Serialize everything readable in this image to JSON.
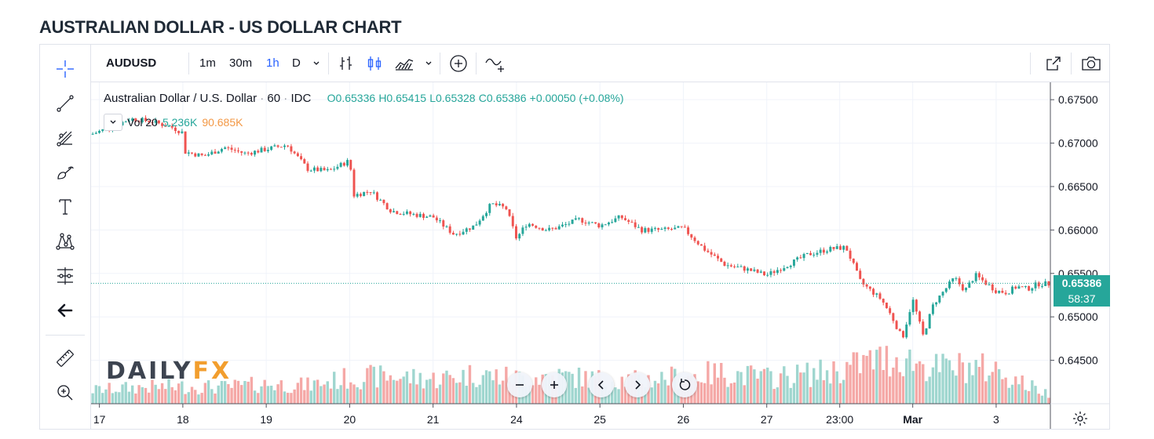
{
  "page_title": "AUSTRALIAN DOLLAR - US DOLLAR CHART",
  "toolbar": {
    "symbol": "AUDUSD",
    "intervals": [
      "1m",
      "30m",
      "1h",
      "D"
    ],
    "active_interval": "1h",
    "icons": [
      "bar-style-icon",
      "candle-style-icon",
      "area-style-icon",
      "chevron-down-icon",
      "add-compare-icon",
      "indicators-icon",
      "fullscreen-popout-icon",
      "snapshot-camera-icon"
    ]
  },
  "left_tools": [
    "crosshair-icon",
    "trend-line-icon",
    "fib-tools-icon",
    "brush-icon",
    "text-icon",
    "pattern-icon",
    "prediction-icon",
    "back-arrow-icon",
    "ruler-icon",
    "zoom-in-icon"
  ],
  "legend": {
    "name": "Australian Dollar / U.S. Dollar",
    "interval": "60",
    "source": "IDC",
    "open": "O0.65336",
    "high": "H0.65415",
    "low": "L0.65328",
    "close": "C0.65386",
    "change": "+0.00050 (+0.08%)"
  },
  "volume_legend": {
    "label": "Vol 20",
    "value1": "5.236K",
    "value2": "90.685K"
  },
  "logo": {
    "part1": "DAILY",
    "part2": "FX"
  },
  "price_badge": {
    "price": "0.65386",
    "countdown": "58:37",
    "color": "#26a69a"
  },
  "colors": {
    "up": "#26a69a",
    "down": "#ef5350",
    "vol_up": "#9fd6cf",
    "vol_down": "#f5a8a6"
  },
  "nav_buttons": [
    "zoom-out",
    "zoom-in",
    "scroll-left",
    "scroll-right",
    "reset"
  ],
  "chart_data": {
    "type": "candlestick",
    "title": "Australian Dollar / U.S. Dollar",
    "interval": "60",
    "ylim": [
      0.64,
      0.677
    ],
    "y_ticks": [
      "0.67500",
      "0.67000",
      "0.66500",
      "0.66000",
      "0.65500",
      "0.65000",
      "0.64500"
    ],
    "x_ticks": [
      {
        "label": "17",
        "pos": 0.0
      },
      {
        "label": "18",
        "pos": 4.0
      },
      {
        "label": "19",
        "pos": 8.0
      },
      {
        "label": "20",
        "pos": 12.0
      },
      {
        "label": "21",
        "pos": 16.0
      },
      {
        "label": "24",
        "pos": 20.0
      },
      {
        "label": "25",
        "pos": 24.0
      },
      {
        "label": "26",
        "pos": 28.0
      },
      {
        "label": "27",
        "pos": 32.0
      },
      {
        "label": "23:00",
        "pos": 35.5
      },
      {
        "label": "Mar",
        "pos": 39.0
      },
      {
        "label": "3",
        "pos": 43.0
      }
    ],
    "x_range": [
      -0.4,
      45.6
    ],
    "price_path": [
      [
        -0.4,
        0.671
      ],
      [
        0.5,
        0.6718
      ],
      [
        1.5,
        0.6728
      ],
      [
        2.5,
        0.6725
      ],
      [
        3.5,
        0.6718
      ],
      [
        4.0,
        0.6712
      ],
      [
        4.1,
        0.669
      ],
      [
        5.0,
        0.6685
      ],
      [
        6.0,
        0.6695
      ],
      [
        7.0,
        0.6688
      ],
      [
        8.0,
        0.6693
      ],
      [
        9.0,
        0.6698
      ],
      [
        10.0,
        0.667
      ],
      [
        11.0,
        0.6668
      ],
      [
        12.0,
        0.668
      ],
      [
        12.2,
        0.664
      ],
      [
        13.0,
        0.6645
      ],
      [
        14.0,
        0.6622
      ],
      [
        15.0,
        0.6618
      ],
      [
        16.0,
        0.6615
      ],
      [
        17.0,
        0.6595
      ],
      [
        18.0,
        0.6605
      ],
      [
        18.8,
        0.663
      ],
      [
        19.5,
        0.6625
      ],
      [
        20.0,
        0.659
      ],
      [
        20.5,
        0.6608
      ],
      [
        21.5,
        0.66
      ],
      [
        22.0,
        0.6603
      ],
      [
        23.0,
        0.6612
      ],
      [
        24.0,
        0.6605
      ],
      [
        25.0,
        0.6615
      ],
      [
        26.0,
        0.66
      ],
      [
        27.0,
        0.66
      ],
      [
        28.0,
        0.6602
      ],
      [
        29.0,
        0.6578
      ],
      [
        30.0,
        0.656
      ],
      [
        31.0,
        0.6555
      ],
      [
        32.0,
        0.6548
      ],
      [
        33.0,
        0.656
      ],
      [
        34.0,
        0.6572
      ],
      [
        35.0,
        0.6578
      ],
      [
        35.8,
        0.658
      ],
      [
        36.5,
        0.654
      ],
      [
        37.5,
        0.652
      ],
      [
        38.0,
        0.65
      ],
      [
        38.5,
        0.6475
      ],
      [
        39.0,
        0.652
      ],
      [
        39.5,
        0.6478
      ],
      [
        40.0,
        0.6515
      ],
      [
        40.5,
        0.653
      ],
      [
        41.0,
        0.6545
      ],
      [
        41.5,
        0.653
      ],
      [
        42.0,
        0.6548
      ],
      [
        43.0,
        0.653
      ],
      [
        43.5,
        0.6528
      ],
      [
        44.0,
        0.6535
      ],
      [
        44.5,
        0.6532
      ],
      [
        45.0,
        0.6538
      ]
    ],
    "volume_path": [
      [
        -0.4,
        0.22
      ],
      [
        2.0,
        0.27
      ],
      [
        4.0,
        0.28
      ],
      [
        6.0,
        0.27
      ],
      [
        8.0,
        0.32
      ],
      [
        10.0,
        0.3
      ],
      [
        12.0,
        0.42
      ],
      [
        14.0,
        0.45
      ],
      [
        16.0,
        0.4
      ],
      [
        18.0,
        0.48
      ],
      [
        20.0,
        0.42
      ],
      [
        22.0,
        0.45
      ],
      [
        24.0,
        0.4
      ],
      [
        26.0,
        0.38
      ],
      [
        28.0,
        0.45
      ],
      [
        30.0,
        0.5
      ],
      [
        32.0,
        0.42
      ],
      [
        34.0,
        0.48
      ],
      [
        35.5,
        0.55
      ],
      [
        37.0,
        0.7
      ],
      [
        38.5,
        0.75
      ],
      [
        40.0,
        0.58
      ],
      [
        41.5,
        0.6
      ],
      [
        43.0,
        0.55
      ],
      [
        44.5,
        0.3
      ],
      [
        45.6,
        0.15
      ]
    ]
  }
}
